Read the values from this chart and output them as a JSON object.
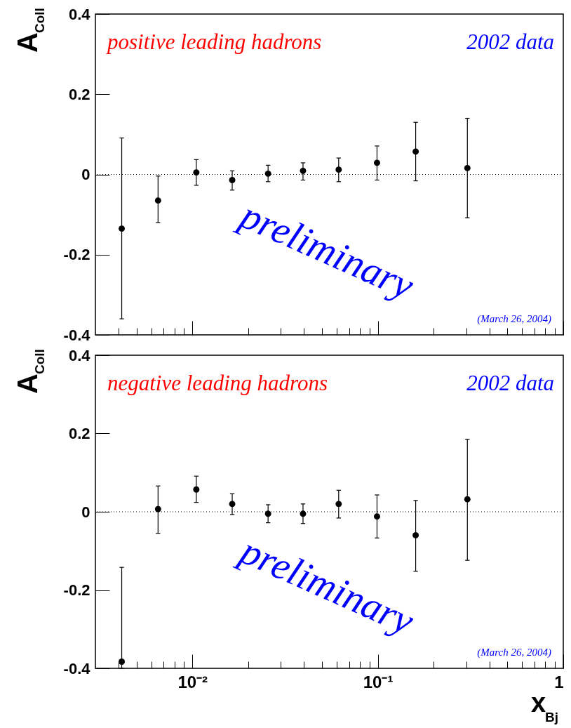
{
  "chart_data": [
    {
      "type": "scatter",
      "ylabel": "A$_{Coll}$",
      "marker": "circle",
      "color": "#000000",
      "grid": false,
      "tick_labels": "y",
      "x": [
        0.00416,
        0.00653,
        0.0105,
        0.0164,
        0.0256,
        0.0395,
        0.0615,
        0.099,
        0.16,
        0.304
      ],
      "values": [
        -0.135,
        -0.065,
        0.005,
        -0.014,
        0.002,
        0.009,
        0.012,
        0.029,
        0.057,
        0.016
      ],
      "errors": [
        [
          -0.36,
          0.091
        ],
        [
          -0.12,
          -0.004
        ],
        [
          -0.027,
          0.037
        ],
        [
          -0.039,
          0.009
        ],
        [
          -0.018,
          0.023
        ],
        [
          -0.014,
          0.029
        ],
        [
          -0.018,
          0.041
        ],
        [
          -0.014,
          0.071
        ],
        [
          -0.016,
          0.13
        ],
        [
          -0.108,
          0.14
        ]
      ],
      "xlim": [
        0.003,
        1
      ],
      "log": "x",
      "xticks": [
        {
          "value": 0.004,
          "label": null
        },
        {
          "value": 0.005,
          "label": null
        },
        {
          "value": 0.006,
          "label": null
        },
        {
          "value": 0.007,
          "label": null
        },
        {
          "value": 0.008,
          "label": null
        },
        {
          "value": 0.009,
          "label": null
        },
        {
          "value": 0.01,
          "label": null
        },
        {
          "value": 0.02,
          "label": null
        },
        {
          "value": 0.03,
          "label": null
        },
        {
          "value": 0.04,
          "label": null
        },
        {
          "value": 0.05,
          "label": null
        },
        {
          "value": 0.06,
          "label": null
        },
        {
          "value": 0.07,
          "label": null
        },
        {
          "value": 0.08,
          "label": null
        },
        {
          "value": 0.09,
          "label": null
        },
        {
          "value": 0.1,
          "label": null
        },
        {
          "value": 0.2,
          "label": null
        },
        {
          "value": 0.3,
          "label": null
        },
        {
          "value": 0.4,
          "label": null
        },
        {
          "value": 0.5,
          "label": null
        },
        {
          "value": 0.6,
          "label": null
        },
        {
          "value": 0.7,
          "label": null
        },
        {
          "value": 0.8,
          "label": null
        },
        {
          "value": 0.9,
          "label": null
        },
        {
          "value": 1,
          "label": null
        }
      ],
      "ylim": [
        -0.4,
        0.4
      ],
      "yticks": [
        -0.4,
        -0.2,
        0,
        0.2,
        0.4
      ],
      "ref_lines": [
        {
          "axis": "y",
          "value": 0,
          "line_style": "dotted"
        }
      ],
      "annotations": [
        "positive leading hadrons",
        "2002 data",
        "preliminary",
        "(March 26, 2004)"
      ]
    },
    {
      "type": "scatter",
      "ylabel": "A$_{Coll}$",
      "xlabel": "x$_{Bj}$",
      "marker": "circle",
      "color": "#000000",
      "grid": false,
      "x": [
        0.00416,
        0.00653,
        0.0105,
        0.0164,
        0.0256,
        0.0395,
        0.0615,
        0.099,
        0.16,
        0.304
      ],
      "values": [
        -0.383,
        0.007,
        0.057,
        0.02,
        -0.005,
        -0.005,
        0.02,
        -0.012,
        -0.06,
        0.032
      ],
      "errors": [
        [
          -0.4,
          -0.142
        ],
        [
          -0.055,
          0.066
        ],
        [
          0.024,
          0.091
        ],
        [
          -0.007,
          0.046
        ],
        [
          -0.028,
          0.018
        ],
        [
          -0.03,
          0.02
        ],
        [
          -0.016,
          0.055
        ],
        [
          -0.067,
          0.043
        ],
        [
          -0.152,
          0.029
        ],
        [
          -0.124,
          0.185
        ]
      ],
      "xlim": [
        0.003,
        1
      ],
      "log": "x",
      "xticks": [
        {
          "value": 0.004,
          "label": null
        },
        {
          "value": 0.005,
          "label": null
        },
        {
          "value": 0.006,
          "label": null
        },
        {
          "value": 0.007,
          "label": null
        },
        {
          "value": 0.008,
          "label": null
        },
        {
          "value": 0.009,
          "label": null
        },
        {
          "value": 0.01,
          "label": "10⁻²"
        },
        {
          "value": 0.02,
          "label": null
        },
        {
          "value": 0.03,
          "label": null
        },
        {
          "value": 0.04,
          "label": null
        },
        {
          "value": 0.05,
          "label": null
        },
        {
          "value": 0.06,
          "label": null
        },
        {
          "value": 0.07,
          "label": null
        },
        {
          "value": 0.08,
          "label": null
        },
        {
          "value": 0.09,
          "label": null
        },
        {
          "value": 0.1,
          "label": "10⁻¹"
        },
        {
          "value": 0.2,
          "label": null
        },
        {
          "value": 0.3,
          "label": null
        },
        {
          "value": 0.4,
          "label": null
        },
        {
          "value": 0.5,
          "label": null
        },
        {
          "value": 0.6,
          "label": null
        },
        {
          "value": 0.7,
          "label": null
        },
        {
          "value": 0.8,
          "label": null
        },
        {
          "value": 0.9,
          "label": null
        },
        1
      ],
      "ylim": [
        -0.4,
        0.4
      ],
      "yticks": [
        -0.4,
        -0.2,
        0,
        0.2,
        0.4
      ],
      "ref_lines": [
        {
          "axis": "y",
          "value": 0,
          "line_style": "dotted"
        }
      ],
      "annotations": [
        "negative leading hadrons",
        "2002 data",
        "preliminary",
        "(March 26, 2004)"
      ]
    }
  ]
}
